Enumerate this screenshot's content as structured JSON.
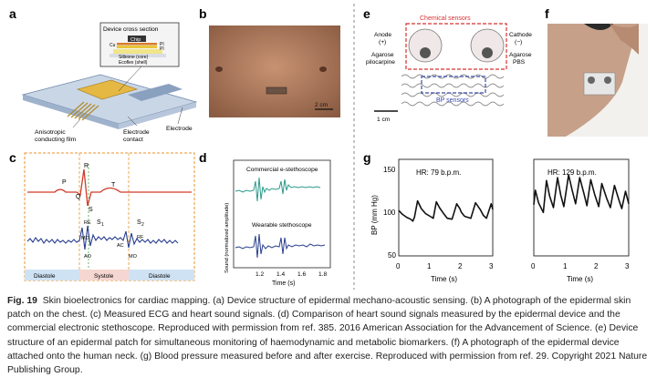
{
  "panels": {
    "a": {
      "label": "a",
      "inset_title": "Device cross section",
      "chip": "Chip",
      "cu": "Cu",
      "pi_top": "PI",
      "pi_bottom": "PI",
      "silbione": "Silbione (core)",
      "ecoflex": "Ecoflex (shell)",
      "film_label_1": "Anisotropic",
      "film_label_2": "conducting film",
      "contact_label_1": "Electrode",
      "contact_label_2": "contact",
      "electrode_label": "Electrode"
    },
    "b": {
      "label": "b",
      "scale": "2 cm"
    },
    "c": {
      "label": "c",
      "P": "P",
      "R": "R",
      "Q": "Q",
      "S": "S",
      "T": "T",
      "RE": "RE",
      "S1": "S",
      "S1_sub": "1",
      "S2": "S",
      "S2_sub": "2",
      "MC": "MC",
      "AO": "AO",
      "AC": "AC",
      "RF": "RF",
      "MO": "MO",
      "diastole_left": "Diastole",
      "systole": "Systole",
      "diastole_right": "Diastole"
    },
    "d": {
      "label": "d",
      "commercial": "Commercial e-stethoscope",
      "wearable": "Wearable stethoscope",
      "ylabel": "Sound (normalized amplitude)",
      "xlabel": "Time (s)",
      "xticks": [
        "1.2",
        "1.4",
        "1.6",
        "1.8"
      ]
    },
    "e": {
      "label": "e",
      "chemical": "Chemical sensors",
      "anode": "Anode",
      "anode_sign": "(+)",
      "cathode": "Cathode",
      "cathode_sign": "(−)",
      "agarose_left_1": "Agarose",
      "agarose_left_2": "pilocarpine",
      "agarose_right_1": "Agarose",
      "agarose_right_2": "PBS",
      "bp": "BP sensors",
      "scale": "1 cm"
    },
    "f": {
      "label": "f"
    },
    "g": {
      "label": "g",
      "ylabel": "BP (mm Hg)",
      "yticks": [
        "150",
        "100",
        "50"
      ],
      "left_hr": "HR: 79 b.p.m.",
      "right_hr": "HR: 129 b.p.m.",
      "xticks": [
        "0",
        "1",
        "2",
        "3"
      ],
      "xlabel": "Time (s)"
    }
  },
  "chart_data": [
    {
      "type": "line",
      "title": "HR: 79 b.p.m.",
      "xlabel": "Time (s)",
      "ylabel": "BP (mm Hg)",
      "xlim": [
        0,
        3
      ],
      "ylim": [
        50,
        150
      ],
      "x": [
        0,
        0.12,
        0.25,
        0.38,
        0.45,
        0.5,
        0.6,
        0.72,
        0.85,
        1.0,
        1.1,
        1.2,
        1.3,
        1.45,
        1.55,
        1.7,
        1.85,
        1.95,
        2.0,
        2.1,
        2.3,
        2.45,
        2.6,
        2.7,
        2.8,
        2.95,
        3.0
      ],
      "series": [
        {
          "values": [
            97,
            93,
            90,
            88,
            86,
            90,
            107,
            99,
            94,
            91,
            89,
            106,
            100,
            93,
            89,
            88,
            104,
            99,
            95,
            91,
            89,
            105,
            98,
            92,
            89,
            104,
            98
          ]
        }
      ]
    },
    {
      "type": "line",
      "title": "HR: 129 b.p.m.",
      "xlabel": "Time (s)",
      "ylabel": "",
      "xlim": [
        0,
        3
      ],
      "ylim": [
        50,
        150
      ],
      "x": [
        0,
        0.05,
        0.15,
        0.3,
        0.4,
        0.5,
        0.62,
        0.75,
        0.85,
        0.95,
        1.1,
        1.22,
        1.32,
        1.45,
        1.58,
        1.68,
        1.8,
        1.92,
        2.05,
        2.15,
        2.3,
        2.42,
        2.55,
        2.68,
        2.78,
        2.9,
        3.0
      ],
      "series": [
        {
          "values": [
            103,
            118,
            105,
            95,
            128,
            112,
            100,
            131,
            113,
            101,
            134,
            117,
            104,
            131,
            115,
            102,
            129,
            114,
            101,
            125,
            110,
            100,
            123,
            109,
            99,
            117,
            104
          ]
        }
      ]
    }
  ],
  "caption": {
    "fig": "Fig. 19",
    "text": "Skin bioelectronics for cardiac mapping. (a) Device structure of epidermal mechano-acoustic sensing. (b) A photograph of the epidermal skin patch on the chest. (c) Measured ECG and heart sound signals. (d) Comparison of heart sound signals measured by the epidermal device and the commercial electronic stethoscope. Reproduced with permission from ref. 385. 2016 American Association for the Advancement of Science. (e) Device structure of an epidermal patch for simultaneous monitoring of haemodynamic and metabolic biomarkers. (f) A photograph of the epidermal device attached onto the human neck. (g) Blood pressure measured before and after exercise. Reproduced with permission from ref. 29. Copyright 2021 Nature Publishing Group."
  },
  "colors": {
    "ecg": "#d03a2a",
    "sound": "#2a3f8f",
    "commercial": "#2a9a8a",
    "orange_box": "#e8932a",
    "chem_box": "#d83030",
    "bp_box": "#3a4aa8"
  }
}
